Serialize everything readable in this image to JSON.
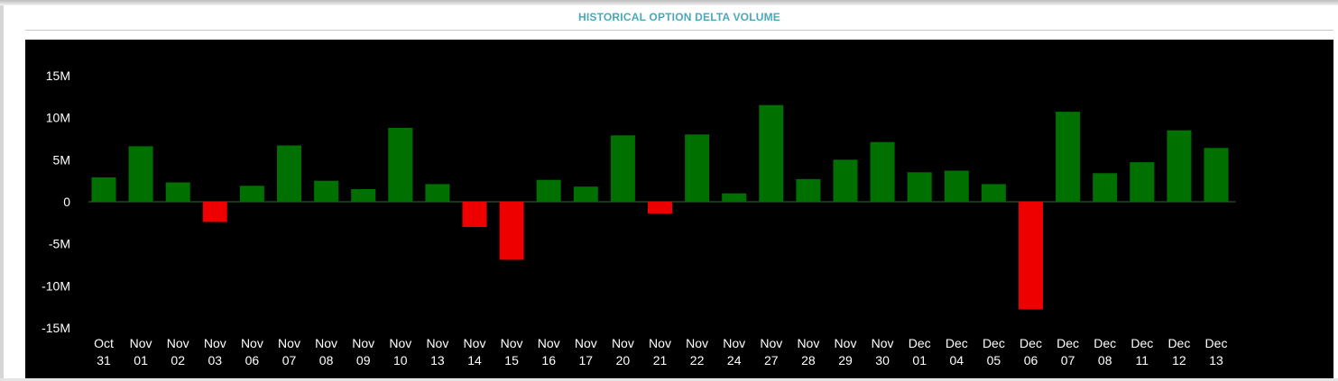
{
  "title": "HISTORICAL OPTION DELTA VOLUME",
  "chart_data": {
    "type": "bar",
    "title": "HISTORICAL OPTION DELTA VOLUME",
    "xlabel": "",
    "ylabel": "",
    "ylim": [
      -15,
      15
    ],
    "y_unit": "M",
    "y_ticks": [
      "15M",
      "10M",
      "5M",
      "0",
      "-5M",
      "-10M",
      "-15M"
    ],
    "y_tick_values": [
      15,
      10,
      5,
      0,
      -5,
      -10,
      -15
    ],
    "grid": false,
    "categories": [
      [
        "Oct",
        "31"
      ],
      [
        "Nov",
        "01"
      ],
      [
        "Nov",
        "02"
      ],
      [
        "Nov",
        "03"
      ],
      [
        "Nov",
        "06"
      ],
      [
        "Nov",
        "07"
      ],
      [
        "Nov",
        "08"
      ],
      [
        "Nov",
        "09"
      ],
      [
        "Nov",
        "10"
      ],
      [
        "Nov",
        "13"
      ],
      [
        "Nov",
        "14"
      ],
      [
        "Nov",
        "15"
      ],
      [
        "Nov",
        "16"
      ],
      [
        "Nov",
        "17"
      ],
      [
        "Nov",
        "20"
      ],
      [
        "Nov",
        "21"
      ],
      [
        "Nov",
        "22"
      ],
      [
        "Nov",
        "24"
      ],
      [
        "Nov",
        "27"
      ],
      [
        "Nov",
        "28"
      ],
      [
        "Nov",
        "29"
      ],
      [
        "Nov",
        "30"
      ],
      [
        "Dec",
        "01"
      ],
      [
        "Dec",
        "04"
      ],
      [
        "Dec",
        "05"
      ],
      [
        "Dec",
        "06"
      ],
      [
        "Dec",
        "07"
      ],
      [
        "Dec",
        "08"
      ],
      [
        "Dec",
        "11"
      ],
      [
        "Dec",
        "12"
      ],
      [
        "Dec",
        "13"
      ]
    ],
    "values": [
      2.9,
      6.6,
      2.3,
      -2.4,
      1.9,
      6.7,
      2.5,
      1.5,
      8.8,
      2.1,
      -3.0,
      -6.9,
      2.6,
      1.8,
      7.9,
      -1.4,
      8.0,
      1.0,
      11.5,
      2.7,
      5.0,
      7.1,
      3.5,
      3.7,
      2.1,
      -12.8,
      10.7,
      3.4,
      4.7,
      8.5,
      6.4
    ],
    "colors": {
      "positive": "#007000",
      "negative": "#ee0000",
      "background": "#000000",
      "text": "#ffffff",
      "zero_line": "#2e6b2e"
    }
  }
}
